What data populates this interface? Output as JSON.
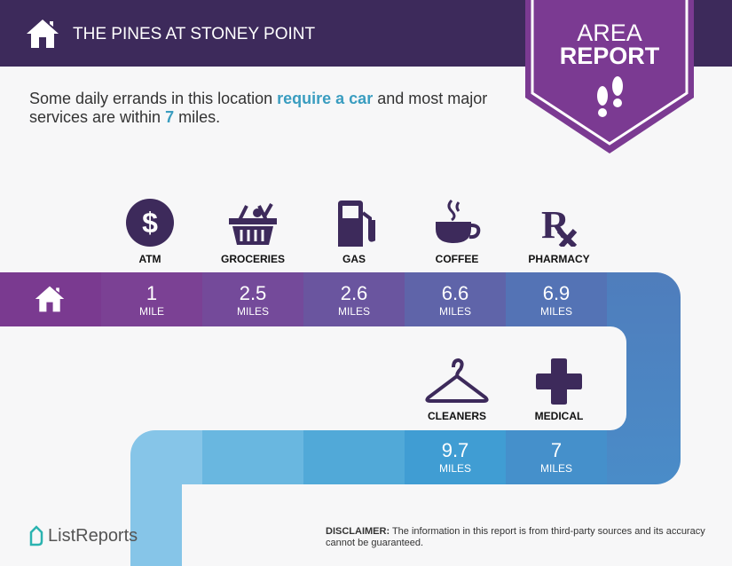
{
  "header": {
    "title": "THE PINES AT STONEY POINT",
    "banner_line1": "AREA",
    "banner_line2": "REPORT"
  },
  "intro": {
    "part1": "Some daily errands in this location ",
    "highlight1": "require a car",
    "part2": " and most major services are within ",
    "highlight2": "7",
    "part3": " miles."
  },
  "colors": {
    "header": "#3d2a5b",
    "banner": "#7b3a92",
    "accent": "#3a9dc0"
  },
  "services": [
    {
      "label": "ATM",
      "icon": "dollar-icon",
      "distance": "1",
      "unit": "MILE"
    },
    {
      "label": "GROCERIES",
      "icon": "basket-icon",
      "distance": "2.5",
      "unit": "MILES"
    },
    {
      "label": "GAS",
      "icon": "gas-pump-icon",
      "distance": "2.6",
      "unit": "MILES"
    },
    {
      "label": "COFFEE",
      "icon": "coffee-cup-icon",
      "distance": "6.6",
      "unit": "MILES"
    },
    {
      "label": "PHARMACY",
      "icon": "rx-icon",
      "distance": "6.9",
      "unit": "MILES"
    },
    {
      "label": "CLEANERS",
      "icon": "hanger-icon",
      "distance": "9.7",
      "unit": "MILES"
    },
    {
      "label": "MEDICAL",
      "icon": "medical-cross-icon",
      "distance": "7",
      "unit": "MILES"
    }
  ],
  "footer": {
    "logo": "ListReports",
    "disclaimer_label": "DISCLAIMER:",
    "disclaimer": " The information in this report is from third-party sources and its accuracy cannot be guaranteed."
  }
}
